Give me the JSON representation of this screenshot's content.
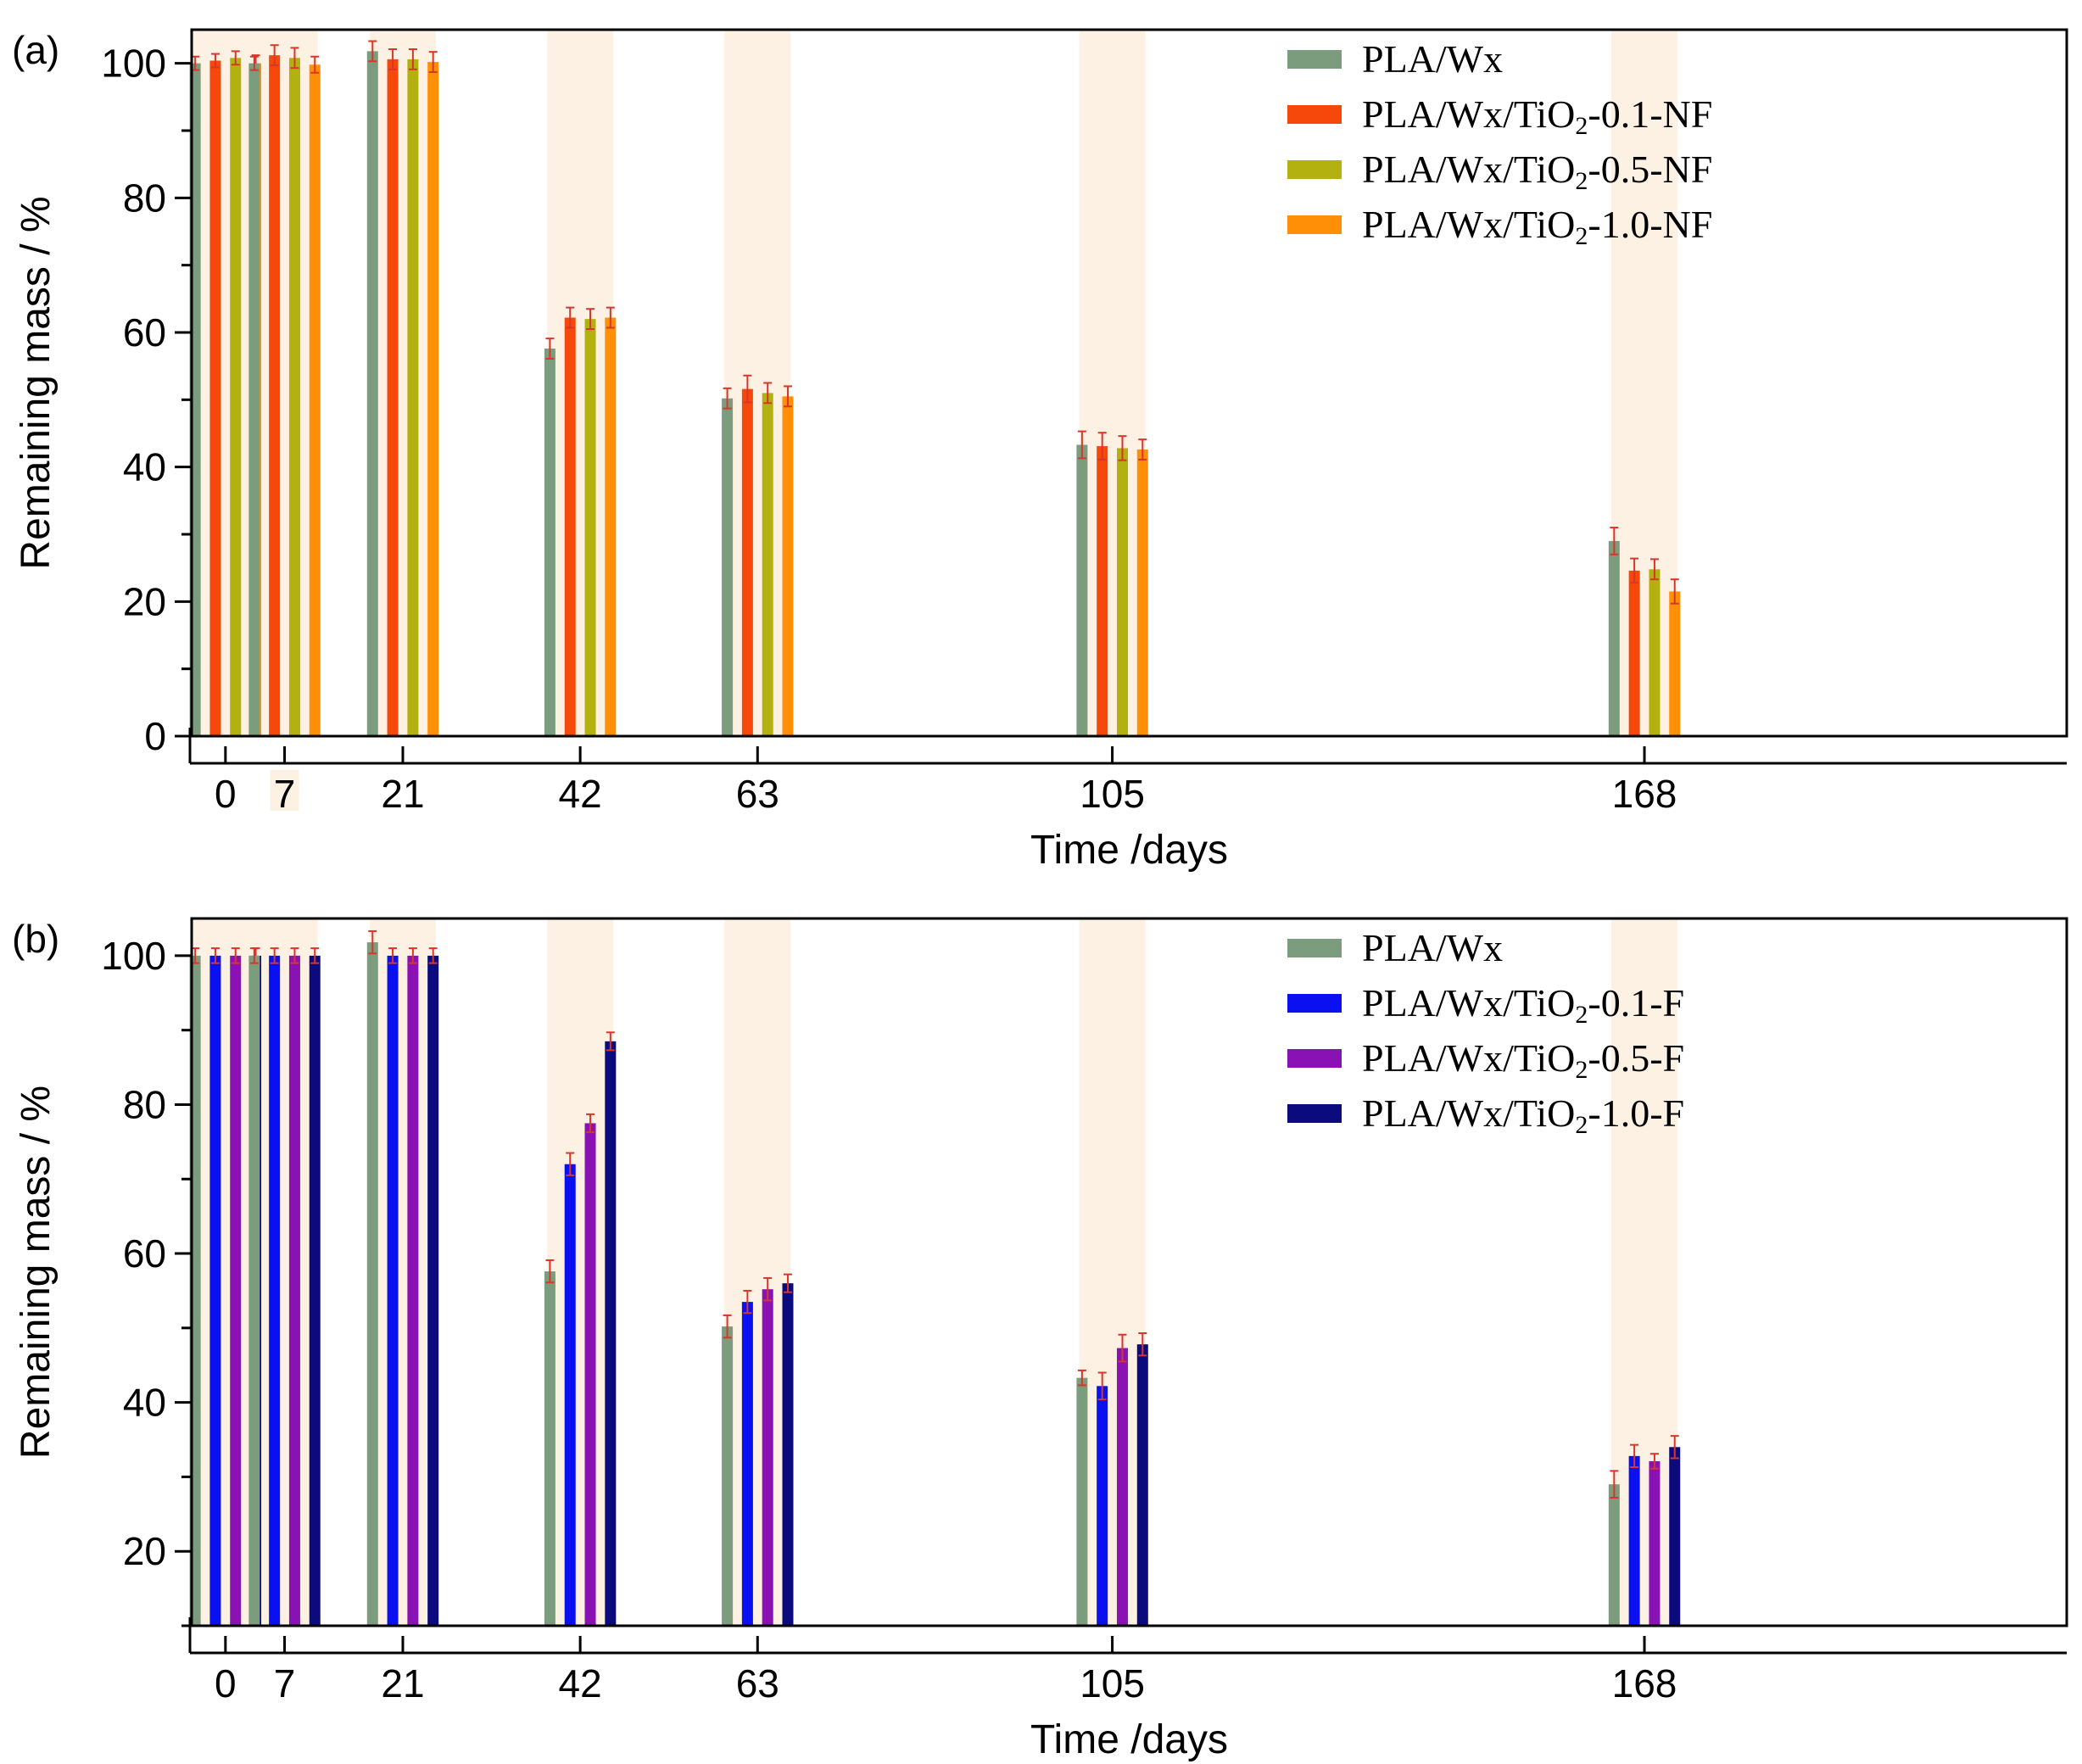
{
  "colors": {
    "band": "#fdf1e4",
    "error_bar": "#d9352a",
    "axis": "#000000"
  },
  "chart_data": [
    {
      "type": "bar",
      "panel_label": "(a)",
      "xlabel": "Time /days",
      "ylabel": "Remaining mass / %",
      "ylim": [
        0,
        105
      ],
      "yticks": [
        0,
        20,
        40,
        60,
        80,
        100
      ],
      "categories": [
        "0",
        "7",
        "21",
        "42",
        "63",
        "105",
        "168"
      ],
      "x_values": [
        0,
        7,
        21,
        42,
        63,
        105,
        168
      ],
      "xlim": [
        -4,
        218
      ],
      "grid": false,
      "legend_position": "top-right",
      "series": [
        {
          "name": "PLA/Wx",
          "color": "#7c9d7d",
          "values": [
            100,
            100,
            101.8,
            57.6,
            50.2,
            43.3,
            29.0
          ],
          "errors": [
            1.0,
            1.0,
            1.5,
            1.5,
            1.5,
            2.0,
            2.0
          ]
        },
        {
          "name": "PLA/Wx/TiO₂-0.1-NF",
          "color": "#f5480a",
          "values": [
            100.4,
            101.2,
            100.6,
            62.2,
            51.6,
            43.1,
            24.6
          ],
          "errors": [
            1.0,
            1.5,
            1.5,
            1.5,
            2.0,
            2.0,
            1.8
          ]
        },
        {
          "name": "PLA/Wx/TiO₂-0.5-NF",
          "color": "#b2b10f",
          "values": [
            100.8,
            100.8,
            100.6,
            62.0,
            51.0,
            42.8,
            24.8
          ],
          "errors": [
            1.0,
            1.5,
            1.5,
            1.5,
            1.5,
            1.8,
            1.5
          ]
        },
        {
          "name": "PLA/Wx/TiO₂-1.0-NF",
          "color": "#ff8f07",
          "values": [
            100.0,
            99.8,
            100.2,
            62.2,
            50.5,
            42.6,
            21.5
          ],
          "errors": [
            1.2,
            1.2,
            1.5,
            1.5,
            1.5,
            1.5,
            1.8
          ]
        }
      ]
    },
    {
      "type": "bar",
      "panel_label": "(b)",
      "xlabel": "Time /days",
      "ylabel": "Remaining mass / %",
      "ylim": [
        10,
        105
      ],
      "yticks": [
        20,
        40,
        60,
        80,
        100
      ],
      "categories": [
        "0",
        "7",
        "21",
        "42",
        "63",
        "105",
        "168"
      ],
      "x_values": [
        0,
        7,
        21,
        42,
        63,
        105,
        168
      ],
      "xlim": [
        -4,
        218
      ],
      "grid": false,
      "legend_position": "top-right",
      "series": [
        {
          "name": "PLA/Wx",
          "color": "#7c9d7d",
          "values": [
            100,
            100,
            101.8,
            57.6,
            50.2,
            43.3,
            29.0
          ],
          "errors": [
            1.0,
            1.0,
            1.5,
            1.5,
            1.5,
            1.0,
            1.8
          ]
        },
        {
          "name": "PLA/Wx/TiO₂-0.1-F",
          "color": "#0a10f0",
          "values": [
            100.0,
            100.0,
            100.0,
            72.0,
            53.5,
            42.2,
            32.8
          ],
          "errors": [
            1.0,
            1.0,
            1.0,
            1.5,
            1.5,
            1.8,
            1.5
          ]
        },
        {
          "name": "PLA/Wx/TiO₂-0.5-F",
          "color": "#8a12b5",
          "values": [
            100.0,
            100.0,
            100.0,
            77.5,
            55.2,
            47.3,
            32.1
          ],
          "errors": [
            1.0,
            1.0,
            1.0,
            1.2,
            1.5,
            1.8,
            1.0
          ]
        },
        {
          "name": "PLA/Wx/TiO₂-1.0-F",
          "color": "#0c0b7e",
          "values": [
            100.0,
            100.0,
            100.0,
            88.5,
            56.0,
            47.8,
            34.0
          ],
          "errors": [
            1.0,
            1.0,
            1.0,
            1.2,
            1.2,
            1.5,
            1.5
          ]
        }
      ]
    }
  ]
}
